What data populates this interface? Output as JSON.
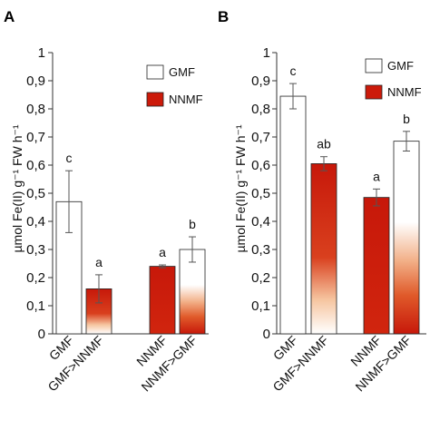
{
  "chart_data": [
    {
      "type": "bar",
      "panel": "A",
      "ylabel": "µmol Fe(II) g⁻¹ FW h⁻¹",
      "ylim": [
        0,
        1
      ],
      "yticks": [
        "0",
        "0,1",
        "0,2",
        "0,3",
        "0,4",
        "0,5",
        "0,6",
        "0,7",
        "0,8",
        "0,9",
        "1"
      ],
      "categories": [
        "GMF",
        "GMF>NNMF",
        "NNMF",
        "NNMF>GMF"
      ],
      "values": [
        0.47,
        0.16,
        0.24,
        0.3
      ],
      "errors": [
        0.11,
        0.05,
        0.005,
        0.045
      ],
      "significance": [
        "c",
        "a",
        "a",
        "b"
      ],
      "fills": [
        "white",
        "red-to-white-bottom",
        "red",
        "white-to-red-bottom"
      ],
      "legend": [
        "GMF",
        "NNMF"
      ],
      "legend_position": "top-right"
    },
    {
      "type": "bar",
      "panel": "B",
      "ylabel": "µmol Fe(II) g⁻¹ FW h⁻¹",
      "ylim": [
        0,
        1
      ],
      "yticks": [
        "0",
        "0,1",
        "0,2",
        "0,3",
        "0,4",
        "0,5",
        "0,6",
        "0,7",
        "0,8",
        "0,9",
        "1"
      ],
      "categories": [
        "GMF",
        "GMF>NNMF",
        "NNMF",
        "NNMF>GMF"
      ],
      "values": [
        0.845,
        0.605,
        0.485,
        0.685
      ],
      "errors": [
        0.045,
        0.025,
        0.03,
        0.035
      ],
      "significance": [
        "c",
        "ab",
        "a",
        "b"
      ],
      "fills": [
        "white",
        "red-to-white-bottom",
        "red",
        "white-to-red-bottom"
      ],
      "legend": [
        "GMF",
        "NNMF"
      ],
      "legend_position": "top-right"
    }
  ],
  "colors": {
    "red": "#cc1a0a",
    "white": "#ffffff",
    "stroke": "#222222"
  }
}
